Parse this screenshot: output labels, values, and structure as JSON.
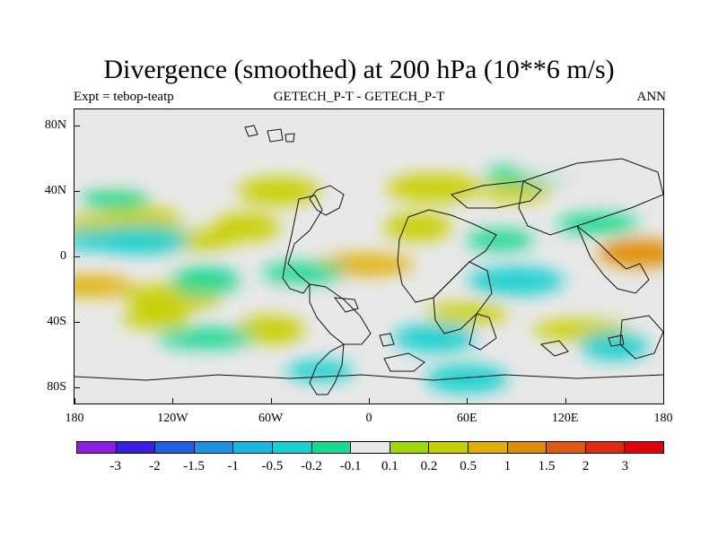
{
  "title": "Divergence (smoothed) at 200 hPa (10**6 m/s)",
  "subtitle_left": "Expt = tebop-teatp",
  "subtitle_center": "GETECH_P-T - GETECH_P-T",
  "subtitle_right": "ANN",
  "y_axis_labels": [
    "80N",
    "40N",
    "0",
    "40S",
    "80S"
  ],
  "y_axis_values": [
    80,
    40,
    0,
    -40,
    -80
  ],
  "x_axis_labels": [
    "180",
    "120W",
    "60W",
    "0",
    "60E",
    "120E",
    "180"
  ],
  "x_axis_values": [
    -180,
    -120,
    -60,
    0,
    60,
    120,
    180
  ],
  "lat_range": [
    -90,
    90
  ],
  "lon_range": [
    -180,
    180
  ],
  "colorbar": {
    "colors": [
      "#8a1fe0",
      "#3a1fe0",
      "#1f5fe0",
      "#1f8fe0",
      "#19b8e0",
      "#19d0d0",
      "#19d890",
      "#e8e8e8",
      "#a0d800",
      "#c8d000",
      "#e0b000",
      "#e08c00",
      "#e05a10",
      "#e02a10",
      "#e00010"
    ],
    "labels": [
      "-3",
      "-2",
      "-1.5",
      "-1",
      "-0.5",
      "-0.2",
      "-0.1",
      "0.1",
      "0.2",
      "0.5",
      "1",
      "1.5",
      "2",
      "3"
    ]
  },
  "chart_data": {
    "type": "heatmap",
    "title": "Divergence (smoothed) at 200 hPa (10**6 m/s)",
    "x_axis": "longitude",
    "y_axis": "latitude",
    "xlim": [
      -180,
      180
    ],
    "ylim": [
      -90,
      90
    ],
    "contour_levels": [
      -3,
      -2,
      -1.5,
      -1,
      -0.5,
      -0.2,
      -0.1,
      0.1,
      0.2,
      0.5,
      1,
      1.5,
      2,
      3
    ],
    "features": [
      {
        "lon": -165,
        "lat": 20,
        "value": 0.3
      },
      {
        "lon": -140,
        "lat": 22,
        "value": 0.3
      },
      {
        "lon": -110,
        "lat": 10,
        "value": 0.3
      },
      {
        "lon": -75,
        "lat": 18,
        "value": 0.2
      },
      {
        "lon": -170,
        "lat": -18,
        "value": 0.5
      },
      {
        "lon": -120,
        "lat": -25,
        "value": 0.3
      },
      {
        "lon": -130,
        "lat": -38,
        "value": 0.3
      },
      {
        "lon": -55,
        "lat": 40,
        "value": 0.3
      },
      {
        "lon": -2,
        "lat": -5,
        "value": 0.5
      },
      {
        "lon": 30,
        "lat": 18,
        "value": 0.3
      },
      {
        "lon": 60,
        "lat": -35,
        "value": 0.3
      },
      {
        "lon": 40,
        "lat": 42,
        "value": 0.3
      },
      {
        "lon": 90,
        "lat": 40,
        "value": 0.3
      },
      {
        "lon": 165,
        "lat": 2,
        "value": 1.0
      },
      {
        "lon": 130,
        "lat": -45,
        "value": 0.3
      },
      {
        "lon": -60,
        "lat": -45,
        "value": 0.2
      },
      {
        "lon": -165,
        "lat": 10,
        "value": -0.3
      },
      {
        "lon": -140,
        "lat": 10,
        "value": -0.3
      },
      {
        "lon": -155,
        "lat": 35,
        "value": -0.2
      },
      {
        "lon": -150,
        "lat": 55,
        "value": -0.1
      },
      {
        "lon": -110,
        "lat": 65,
        "value": -0.1
      },
      {
        "lon": -100,
        "lat": -15,
        "value": -0.2
      },
      {
        "lon": -40,
        "lat": -10,
        "value": -0.2
      },
      {
        "lon": 90,
        "lat": -15,
        "value": -0.3
      },
      {
        "lon": 80,
        "lat": 10,
        "value": -0.2
      },
      {
        "lon": 40,
        "lat": -50,
        "value": -0.3
      },
      {
        "lon": 100,
        "lat": 50,
        "value": -0.2
      },
      {
        "lon": 150,
        "lat": -55,
        "value": -0.4
      },
      {
        "lon": 140,
        "lat": 20,
        "value": -0.2
      },
      {
        "lon": 120,
        "lat": 55,
        "value": -0.1
      },
      {
        "lon": -30,
        "lat": -70,
        "value": -0.3
      },
      {
        "lon": 60,
        "lat": -75,
        "value": -0.3
      },
      {
        "lon": -100,
        "lat": -50,
        "value": -0.2
      }
    ]
  }
}
